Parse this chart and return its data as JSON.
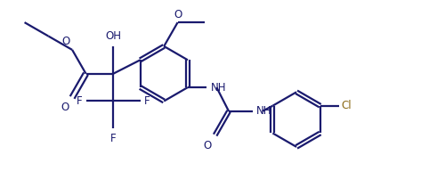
{
  "bg_color": "#ffffff",
  "bond_color": "#1a1a6e",
  "atom_color": "#1a1a6e",
  "cl_color": "#8b6914",
  "line_width": 1.6,
  "font_size": 8.5,
  "figsize": [
    4.73,
    2.2
  ],
  "dpi": 100,
  "xlim": [
    0,
    9.5
  ],
  "ylim": [
    0,
    4.4
  ]
}
